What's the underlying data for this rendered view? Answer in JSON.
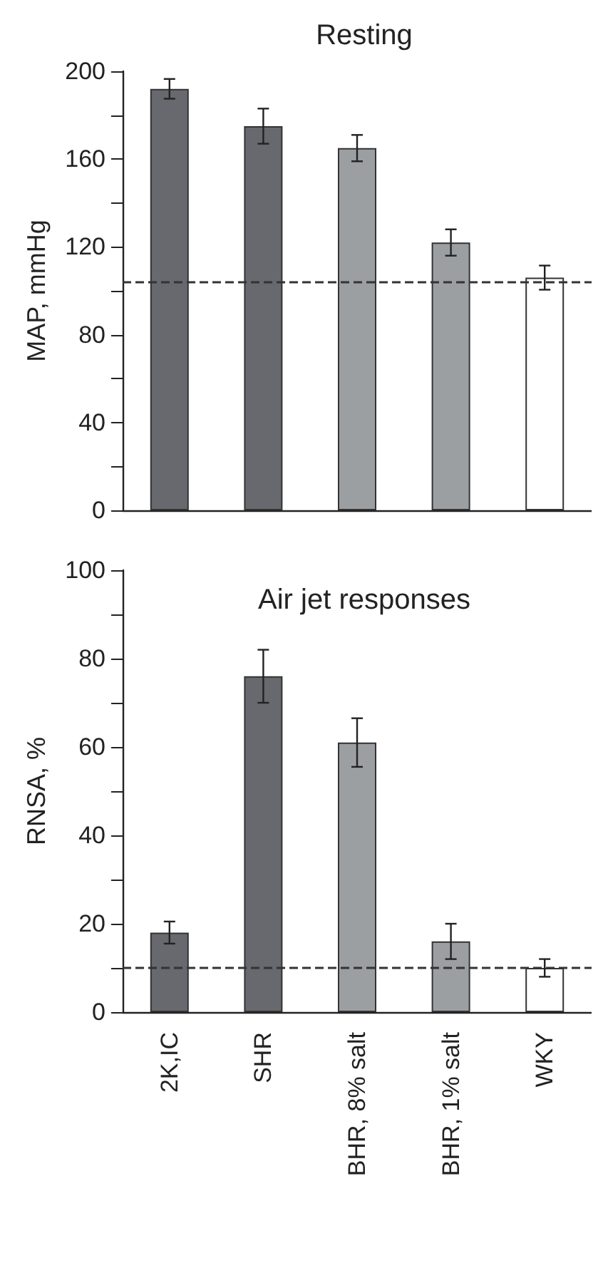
{
  "chart_data": [
    {
      "type": "bar",
      "title": "Resting",
      "ylabel": "MAP, mmHg",
      "categories": [
        null,
        null,
        null,
        null,
        null
      ],
      "values": [
        192,
        175,
        165,
        122,
        106
      ],
      "errors": [
        4.5,
        8,
        6,
        6,
        5.5
      ],
      "colors": [
        "#68696e",
        "#68696e",
        "#9c9fa2",
        "#9c9fa2",
        "#ffffff"
      ],
      "ylim": [
        0,
        200
      ],
      "yticks": [
        0,
        {
          "value": 20,
          "label": null
        },
        40,
        {
          "value": 60,
          "label": null
        },
        80,
        {
          "value": 100,
          "label": null
        },
        120,
        {
          "value": 140,
          "label": null
        },
        160,
        {
          "value": 180,
          "label": null
        },
        200
      ],
      "ref_lines": [
        {
          "axis": "y",
          "value": 104,
          "line_style": "dashed"
        }
      ],
      "tick_labels": "y"
    },
    {
      "type": "bar",
      "title": "Air jet responses",
      "ylabel": "RNSA, %",
      "categories": [
        "2K,IC",
        "SHR",
        "BHR, 8% salt",
        "BHR, 1% salt",
        "WKY"
      ],
      "values": [
        18,
        76,
        61,
        16,
        10
      ],
      "errors": [
        2.5,
        6,
        5.5,
        4,
        2
      ],
      "colors": [
        "#68696e",
        "#68696e",
        "#9c9fa2",
        "#9c9fa2",
        "#ffffff"
      ],
      "ylim": [
        0,
        100
      ],
      "yticks": [
        0,
        {
          "value": 10,
          "label": null
        },
        20,
        {
          "value": 30,
          "label": null
        },
        40,
        {
          "value": 50,
          "label": null
        },
        60,
        {
          "value": 70,
          "label": null
        },
        80,
        {
          "value": 90,
          "label": null
        },
        100
      ],
      "ref_lines": [
        {
          "axis": "y",
          "value": 10,
          "line_style": "dashed"
        }
      ]
    }
  ]
}
